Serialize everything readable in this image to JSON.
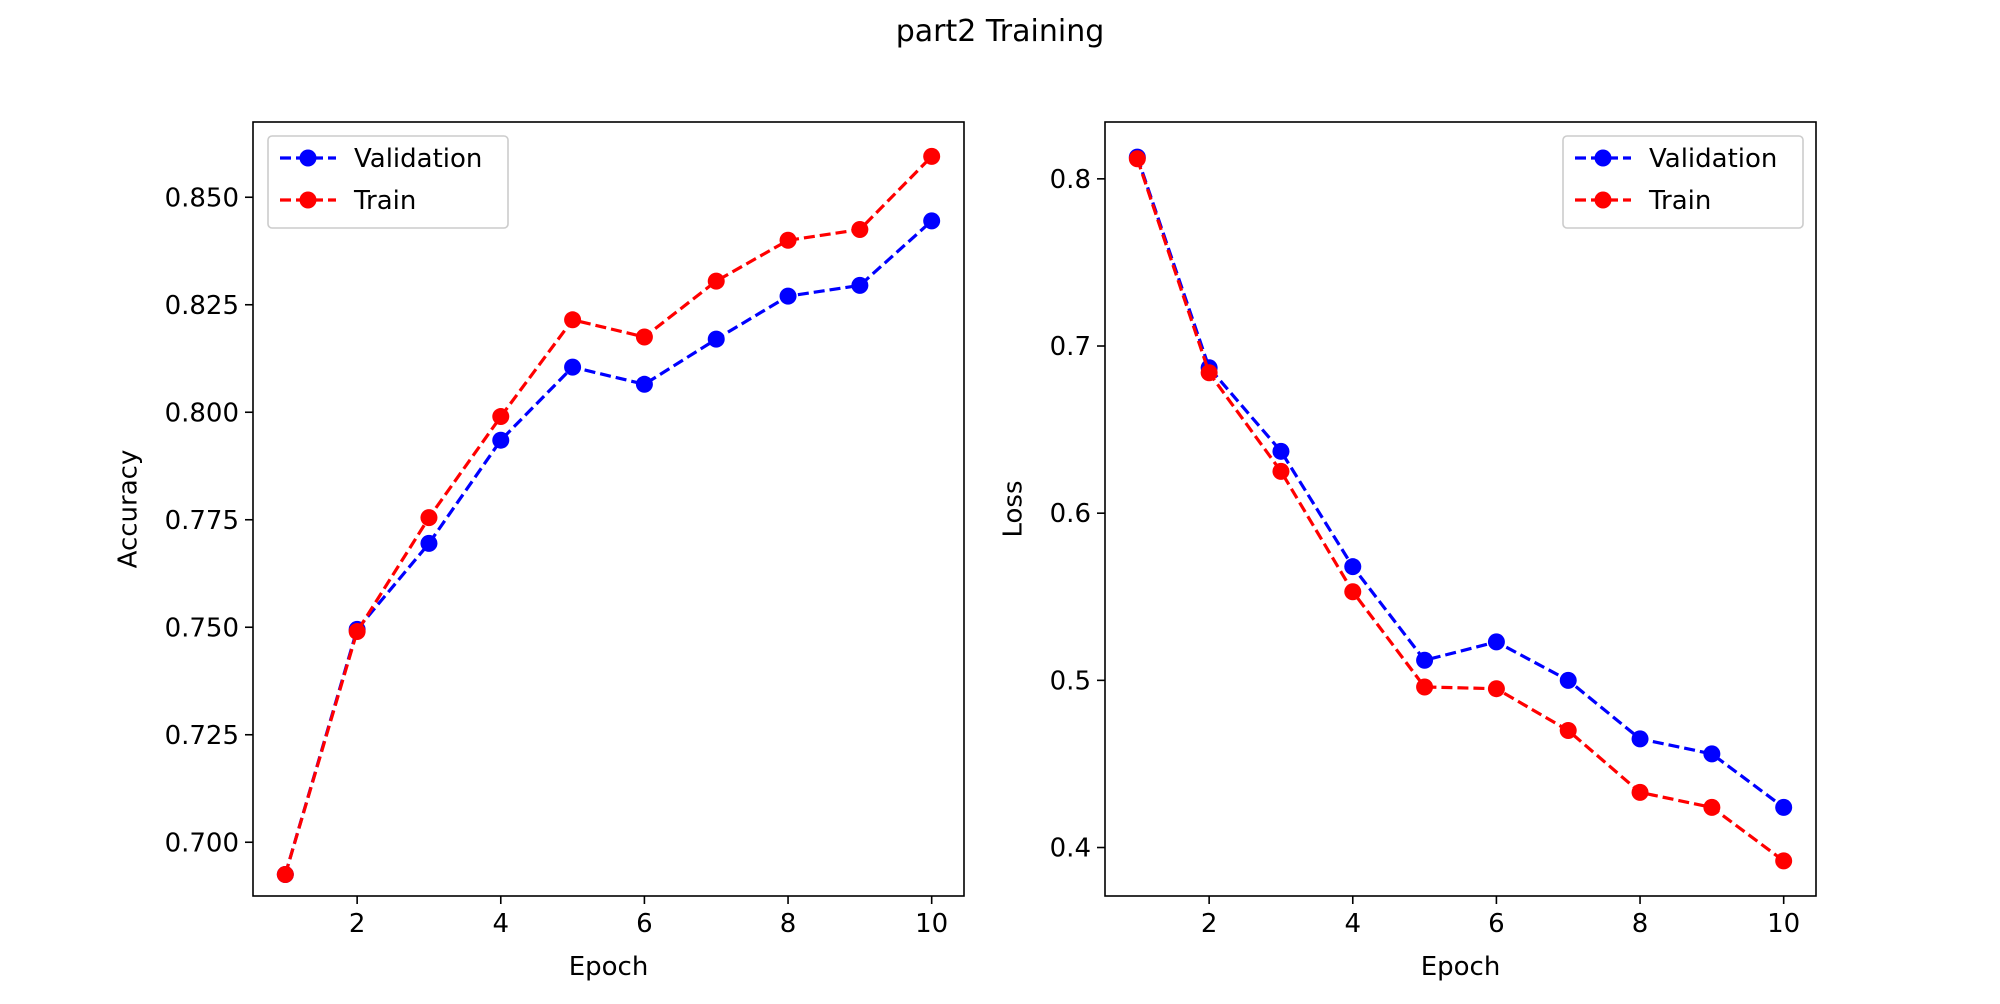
{
  "figure": {
    "title": "part2 Training"
  },
  "chart_data": [
    {
      "type": "line",
      "title": "",
      "xlabel": "Epoch",
      "ylabel": "Accuracy",
      "x": [
        1,
        2,
        3,
        4,
        5,
        6,
        7,
        8,
        9,
        10
      ],
      "xlim": [
        0.55,
        10.45
      ],
      "ylim": [
        0.6875,
        0.8675
      ],
      "xticks": [
        2,
        4,
        6,
        8,
        10
      ],
      "xtick_labels": [
        "2",
        "4",
        "6",
        "8",
        "10"
      ],
      "yticks": [
        0.7,
        0.725,
        0.75,
        0.775,
        0.8,
        0.825,
        0.85
      ],
      "ytick_labels": [
        "0.700",
        "0.725",
        "0.750",
        "0.775",
        "0.800",
        "0.825",
        "0.850"
      ],
      "legend_position": "top-left",
      "grid": false,
      "series": [
        {
          "name": "Validation",
          "color": "#0000ff",
          "values": [
            0.6925,
            0.7495,
            0.7695,
            0.7935,
            0.8105,
            0.8065,
            0.817,
            0.827,
            0.8295,
            0.8445
          ]
        },
        {
          "name": "Train",
          "color": "#ff0000",
          "values": [
            0.6925,
            0.749,
            0.7755,
            0.799,
            0.8215,
            0.8175,
            0.8305,
            0.84,
            0.8425,
            0.8595
          ]
        }
      ]
    },
    {
      "type": "line",
      "title": "",
      "xlabel": "Epoch",
      "ylabel": "Loss",
      "x": [
        1,
        2,
        3,
        4,
        5,
        6,
        7,
        8,
        9,
        10
      ],
      "xlim": [
        0.55,
        10.45
      ],
      "ylim": [
        0.371,
        0.834
      ],
      "xticks": [
        2,
        4,
        6,
        8,
        10
      ],
      "xtick_labels": [
        "2",
        "4",
        "6",
        "8",
        "10"
      ],
      "yticks": [
        0.4,
        0.5,
        0.6,
        0.7,
        0.8
      ],
      "ytick_labels": [
        "0.4",
        "0.5",
        "0.6",
        "0.7",
        "0.8"
      ],
      "legend_position": "top-right",
      "grid": false,
      "series": [
        {
          "name": "Validation",
          "color": "#0000ff",
          "values": [
            0.813,
            0.687,
            0.637,
            0.568,
            0.512,
            0.523,
            0.5,
            0.465,
            0.456,
            0.424
          ]
        },
        {
          "name": "Train",
          "color": "#ff0000",
          "values": [
            0.812,
            0.684,
            0.625,
            0.553,
            0.496,
            0.495,
            0.47,
            0.433,
            0.424,
            0.392
          ]
        }
      ]
    }
  ]
}
